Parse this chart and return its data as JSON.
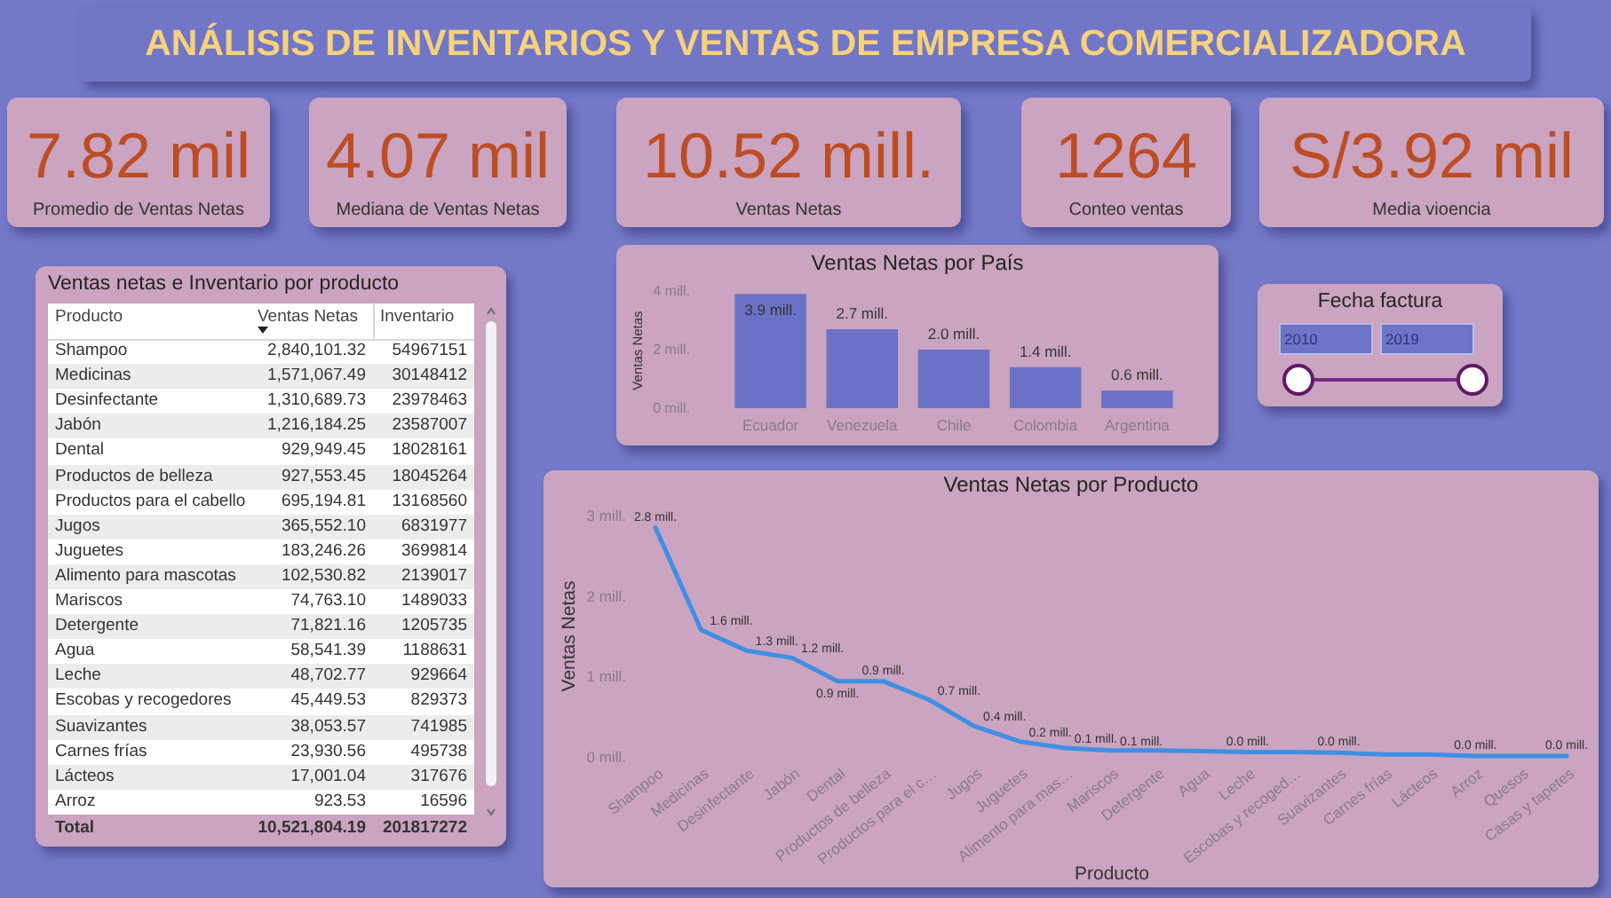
{
  "chart_data": [
    {
      "type": "other",
      "title": "ANÁLISIS DE INVENTARIOS Y VENTAS DE EMPRESA COMERCIALIZADORA",
      "annotations": [
        "7.82 mil",
        "Promedio de Ventas Netas",
        "4.07 mil",
        "Mediana de Ventas Netas",
        "10.52 mill.",
        "Ventas Netas",
        "1264",
        "Conteo ventas",
        "S/3.92 mil",
        "Media vioencia"
      ]
    },
    {
      "type": "other",
      "title": "Ventas netas e Inventario por producto",
      "annotations": [
        "Producto",
        "Ventas Netas",
        "Inventario",
        "Shampoo",
        "2,840,101.32",
        "54967151",
        "Medicinas",
        "1,571,067.49",
        "30148412",
        "Desinfectante",
        "1,310,689.73",
        "23978463",
        "Jabón",
        "1,216,184.25",
        "23587007",
        "Dental",
        "929,949.45",
        "18028161",
        "Productos de belleza",
        "927,553.45",
        "18045264",
        "Productos para el cabello",
        "695,194.81",
        "13168560",
        "Jugos",
        "365,552.10",
        "6831977",
        "Juguetes",
        "183,246.26",
        "3699814",
        "Alimento para mascotas",
        "102,530.82",
        "2139017",
        "Mariscos",
        "74,763.10",
        "1489033",
        "Detergente",
        "71,821.16",
        "1205735",
        "Agua",
        "58,541.39",
        "1188631",
        "Leche",
        "48,702.77",
        "929664",
        "Escobas y recogedores",
        "45,449.53",
        "829373",
        "Suavizantes",
        "38,053.57",
        "741985",
        "Carnes frías",
        "23,930.56",
        "495738",
        "Lácteos",
        "17,001.04",
        "317676",
        "Arroz",
        "923.53",
        "16596",
        "Total",
        "10,521,804.19",
        "201817272"
      ]
    },
    {
      "type": "bar",
      "title": "Ventas Netas por País",
      "categories": [
        "Ecuador",
        "Venezuela",
        "Chile",
        "Colombia",
        "Argentina"
      ],
      "values": [
        3.9,
        2.7,
        2.0,
        1.4,
        0.6
      ],
      "color": "#6b71c6",
      "ylabel": "Ventas Netas",
      "ylim": [
        0,
        4
      ],
      "yticks": [
        {
          "value": 0,
          "label": "0 mill."
        },
        {
          "value": 2,
          "label": "2 mill."
        },
        {
          "value": 4,
          "label": "4 mill."
        }
      ],
      "value_labels": [
        "3.9 mill.",
        "2.7 mill.",
        "2.0 mill.",
        "1.4 mill.",
        "0.6 mill."
      ]
    },
    {
      "type": "other",
      "title": "Fecha factura",
      "annotations": [
        "2010",
        "2019"
      ]
    },
    {
      "type": "line",
      "title": "Ventas Netas por Producto",
      "categories": [
        "Shampoo",
        "Medicinas",
        "Desinfectante",
        "Jabón",
        "Dental",
        "Productos de belleza",
        "Productos para el c…",
        "Jugos",
        "Juguetes",
        "Alimento para mas…",
        "Mariscos",
        "Detergente",
        "Agua",
        "Leche",
        "Escobas y recoged…",
        "Suavizantes",
        "Carnes frías",
        "Lácteos",
        "Arroz",
        "Quesos",
        "Casas y tapetes"
      ],
      "values": [
        2.84,
        1.57,
        1.31,
        1.22,
        0.93,
        0.93,
        0.7,
        0.37,
        0.18,
        0.1,
        0.07,
        0.07,
        0.06,
        0.049,
        0.05,
        0.04,
        0.02,
        0.02,
        0.0,
        0.0,
        0.0
      ],
      "value_labels": [
        "2.8 mill.",
        "1.6 mill.",
        "1.3 mill.",
        "1.2 mill.",
        "0.9 mill.",
        "0.9 mill.",
        "0.7 mill.",
        "0.4 mill.",
        "0.2 mill.",
        "0.1 mill.",
        "0.1 mill.",
        null,
        null,
        "0.0 mill.",
        null,
        "0.0 mill.",
        null,
        null,
        "0.0 mill.",
        null,
        "0.0 mill."
      ],
      "color": "#3f8fe3",
      "xlabel": "Producto",
      "ylabel": "Ventas Netas",
      "ylim": [
        0,
        3
      ],
      "yticks": [
        {
          "value": 0,
          "label": "0 mill."
        },
        {
          "value": 1,
          "label": "1 mill."
        },
        {
          "value": 2,
          "label": "2 mill."
        },
        {
          "value": 3,
          "label": "3 mill."
        }
      ]
    }
  ]
}
